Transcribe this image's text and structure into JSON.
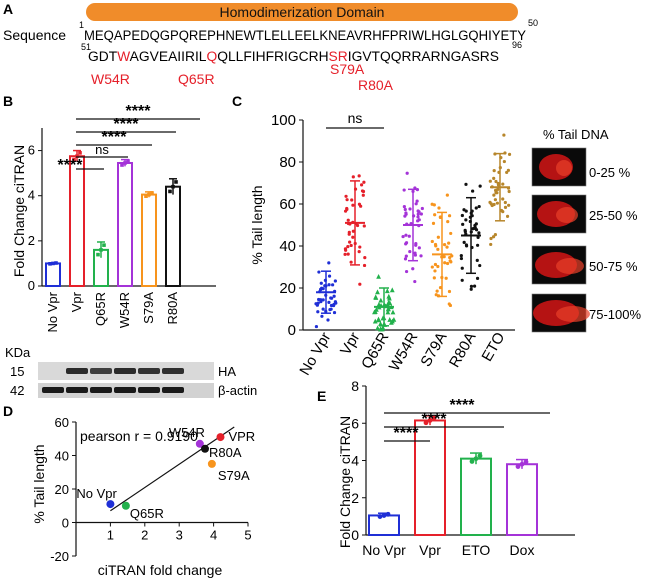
{
  "colors": {
    "novpr": "#1f2fd6",
    "vpr": "#e5202a",
    "q65r": "#22b14c",
    "w54r": "#a433d8",
    "s79a": "#f7941d",
    "r80a": "#111111",
    "eto": "#b7862b",
    "domain": "#f08c2a",
    "mutation": "#e5202a"
  },
  "panelA": {
    "letter": "A",
    "label": "Sequence",
    "domain_label": "Homodimerization Domain",
    "line1": {
      "start": "1",
      "end": "50",
      "text": "MEQAPEDQGPQREPHNEWTLELLEELKNEAVRHFPRIWLHGLGQHIYETY"
    },
    "line2": {
      "start": "51",
      "end": "96",
      "segments": [
        {
          "t": "GDT",
          "m": false
        },
        {
          "t": "W",
          "m": true
        },
        {
          "t": "AGVEAIIRIL",
          "m": false
        },
        {
          "t": "Q",
          "m": true
        },
        {
          "t": "QLLFIHFRIGCRH",
          "m": false
        },
        {
          "t": "SR",
          "m": true
        },
        {
          "t": "IGVTQQRRARNGASRS",
          "m": false
        }
      ]
    },
    "mutations": [
      "W54R",
      "Q65R",
      "S79A",
      "R80A"
    ]
  },
  "panelB": {
    "letter": "B",
    "ylabel": "Fold Change  ciTRAN",
    "yticks": [
      "0",
      "2",
      "4",
      "6"
    ],
    "significance": [
      "****",
      "****",
      "****",
      "ns",
      "****"
    ],
    "blot": {
      "header": "KDa",
      "rows": [
        {
          "kda": "15",
          "label": "HA"
        },
        {
          "kda": "42",
          "label": "β-actin"
        }
      ]
    }
  },
  "panelC": {
    "letter": "C",
    "ylabel": "% Tail length",
    "yticks": [
      "0",
      "20",
      "40",
      "60",
      "80",
      "100"
    ],
    "significance": "ns",
    "comet_title": "% Tail DNA",
    "comet_labels": [
      "0-25 %",
      "25-50 %",
      "50-75 %",
      "75-100%"
    ]
  },
  "panelD": {
    "letter": "D",
    "annotation": "pearson r = 0.9190",
    "ylabel": "% Tail length",
    "xlabel": "ciTRAN fold change",
    "xticks": [
      "1",
      "2",
      "3",
      "4",
      "5"
    ],
    "yticks": [
      "-20",
      "0",
      "20",
      "40",
      "60"
    ]
  },
  "panelE": {
    "letter": "E",
    "ylabel": "Fold Change  ciTRAN",
    "yticks": [
      "0",
      "2",
      "4",
      "6",
      "8"
    ],
    "significance": [
      "****",
      "****",
      "****"
    ]
  },
  "chart_data": [
    {
      "id": "B",
      "type": "bar",
      "title": "",
      "xlabel": "",
      "ylabel": "Fold Change  ciTRAN",
      "ylim": [
        0,
        7
      ],
      "categories": [
        "No Vpr",
        "Vpr",
        "Q65R",
        "W54R",
        "S79A",
        "R80A"
      ],
      "values": [
        1.0,
        5.75,
        1.6,
        5.45,
        4.05,
        4.4
      ],
      "errors": [
        0.03,
        0.25,
        0.35,
        0.15,
        0.12,
        0.35
      ]
    },
    {
      "id": "C",
      "type": "scatter",
      "title": "",
      "xlabel": "",
      "ylabel": "% Tail length",
      "ylim": [
        0,
        100
      ],
      "categories": [
        "No Vpr",
        "Vpr",
        "Q65R",
        "W54R",
        "S79A",
        "R80A",
        "ETO"
      ],
      "means": [
        18,
        51,
        11,
        50,
        36,
        45,
        68
      ],
      "sd": [
        10,
        20,
        9,
        17,
        20,
        18,
        16
      ]
    },
    {
      "id": "D",
      "type": "scatter",
      "title": "",
      "xlabel": "ciTRAN fold change",
      "ylabel": "% Tail length",
      "xlim": [
        0,
        5
      ],
      "ylim": [
        -20,
        60
      ],
      "points": [
        {
          "label": "No Vpr",
          "x": 1.0,
          "y": 11
        },
        {
          "label": "Q65R",
          "x": 1.45,
          "y": 10
        },
        {
          "label": "W54R",
          "x": 3.6,
          "y": 47
        },
        {
          "label": "VPR",
          "x": 4.2,
          "y": 51
        },
        {
          "label": "R80A",
          "x": 3.75,
          "y": 44
        },
        {
          "label": "S79A",
          "x": 3.95,
          "y": 35
        }
      ],
      "fit": {
        "x": [
          1.0,
          4.6
        ],
        "y": [
          7,
          57
        ]
      }
    },
    {
      "id": "E",
      "type": "bar",
      "title": "",
      "xlabel": "",
      "ylabel": "Fold Change  ciTRAN",
      "ylim": [
        0,
        8
      ],
      "categories": [
        "No Vpr",
        "Vpr",
        "ETO",
        "Dox"
      ],
      "values": [
        1.05,
        6.15,
        4.1,
        3.8
      ],
      "errors": [
        0.12,
        0.25,
        0.3,
        0.25
      ]
    }
  ]
}
